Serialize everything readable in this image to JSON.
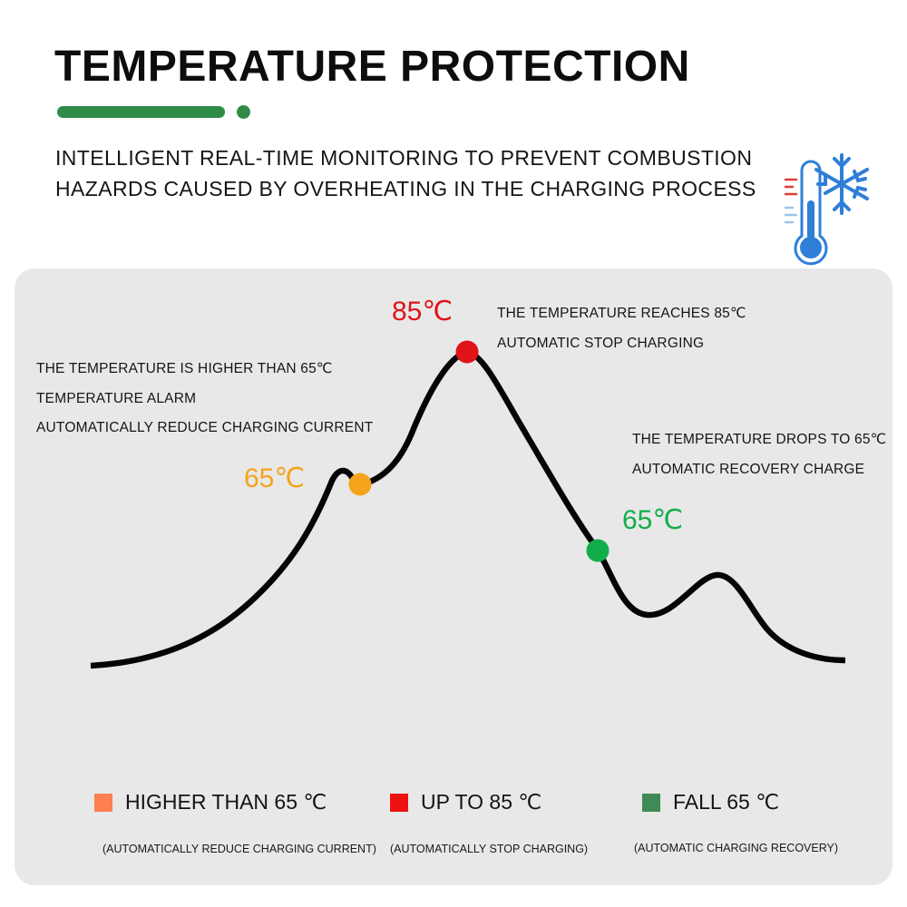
{
  "header": {
    "title": "TEMPERATURE PROTECTION",
    "subtitle_line1": "INTELLIGENT REAL-TIME MONITORING TO PREVENT COMBUSTION",
    "subtitle_line2": "HAZARDS CAUSED BY OVERHEATING IN THE CHARGING PROCESS",
    "accent_color": "#2f8a47",
    "icon": "thermometer-snowflake-icon"
  },
  "diagram": {
    "point_65_rising": {
      "label": "65℃",
      "color": "#f5a31a",
      "notes": [
        "THE TEMPERATURE IS HIGHER THAN 65℃",
        "TEMPERATURE ALARM",
        "AUTOMATICALLY REDUCE CHARGING CURRENT"
      ]
    },
    "point_85_peak": {
      "label": "85℃",
      "color": "#e0131a",
      "notes": [
        "THE TEMPERATURE REACHES 85℃",
        "AUTOMATIC STOP CHARGING"
      ]
    },
    "point_65_falling": {
      "label": "65℃",
      "color": "#12ad4b",
      "notes": [
        "THE TEMPERATURE DROPS TO 65℃",
        "AUTOMATIC RECOVERY CHARGE"
      ]
    }
  },
  "legend": {
    "items": [
      {
        "label": "HIGHER THAN 65 ℃",
        "note": "(AUTOMATICALLY REDUCE CHARGING CURRENT)",
        "color": "#ff7f50"
      },
      {
        "label": "UP TO 85 ℃",
        "note": "(AUTOMATICALLY STOP CHARGING)",
        "color": "#ee1111"
      },
      {
        "label": "FALL 65 ℃",
        "note": "(AUTOMATIC CHARGING RECOVERY)",
        "color": "#3f8a55"
      }
    ]
  }
}
